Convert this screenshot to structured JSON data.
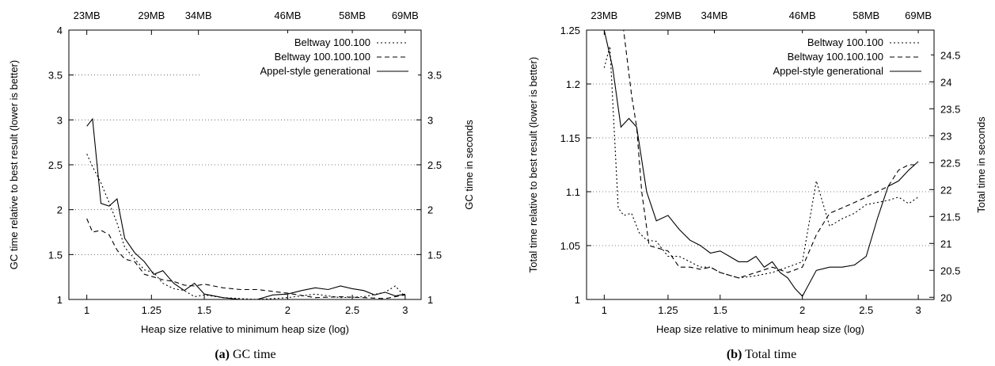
{
  "chart_data": [
    {
      "type": "line",
      "caption_prefix": "(a)",
      "caption_text": "GC time",
      "xlabel": "Heap size relative to minimum heap size (log)",
      "ylabel": "GC time relative to best result (lower is better)",
      "y2label": "GC time in seconds",
      "x_scale": "log",
      "xlim": [
        0.94,
        3.17
      ],
      "ylim": [
        1,
        4
      ],
      "y2lim": [
        1,
        4
      ],
      "x_ticks": [
        1,
        1.25,
        1.5,
        2,
        2.5,
        3
      ],
      "x_tick_labels": [
        "1",
        "1.25",
        "1.5",
        "2",
        "2.5",
        "3"
      ],
      "y_ticks": [
        1,
        1.5,
        2,
        2.5,
        3,
        3.5,
        4
      ],
      "y_tick_labels": [
        "1",
        "1.5",
        "2",
        "2.5",
        "3",
        "3.5",
        "4"
      ],
      "y2_ticks": [
        1,
        1.5,
        2,
        2.5,
        3,
        3.5
      ],
      "y2_tick_labels": [
        "1",
        "1.5",
        "2",
        "2.5",
        "3",
        "3.5"
      ],
      "top_ticks": [
        1,
        1.25,
        1.47,
        2,
        2.5,
        3
      ],
      "top_tick_labels": [
        "23MB",
        "29MB",
        "34MB",
        "46MB",
        "58MB",
        "69MB"
      ],
      "grid": "horizontal-dotted",
      "legend": "top-right",
      "series": [
        {
          "name": "Beltway 100.100",
          "dash": "2,3",
          "x": [
            1.0,
            1.02,
            1.05,
            1.08,
            1.11,
            1.14,
            1.18,
            1.22,
            1.26,
            1.3,
            1.35,
            1.4,
            1.45,
            1.5,
            1.6,
            1.7,
            1.8,
            1.9,
            2.0,
            2.2,
            2.4,
            2.6,
            2.8,
            2.9,
            3.0
          ],
          "y": [
            2.62,
            2.48,
            2.3,
            2.08,
            1.85,
            1.58,
            1.45,
            1.33,
            1.3,
            1.18,
            1.12,
            1.1,
            1.03,
            1.05,
            1.02,
            1.01,
            1.0,
            1.01,
            1.02,
            1.06,
            1.02,
            1.03,
            1.08,
            1.15,
            1.03
          ]
        },
        {
          "name": "Beltway 100.100.100",
          "dash": "6,4",
          "x": [
            1.0,
            1.02,
            1.05,
            1.08,
            1.11,
            1.14,
            1.18,
            1.22,
            1.26,
            1.3,
            1.35,
            1.4,
            1.45,
            1.5,
            1.6,
            1.7,
            1.8,
            1.9,
            2.0,
            2.2,
            2.4,
            2.6,
            2.8,
            3.0
          ],
          "y": [
            1.9,
            1.75,
            1.77,
            1.72,
            1.55,
            1.45,
            1.42,
            1.28,
            1.25,
            1.22,
            1.2,
            1.16,
            1.15,
            1.17,
            1.13,
            1.11,
            1.11,
            1.09,
            1.07,
            1.02,
            1.03,
            1.02,
            1.01,
            1.05
          ]
        },
        {
          "name": "Appel-style generational",
          "dash": "",
          "x": [
            1.0,
            1.02,
            1.05,
            1.08,
            1.11,
            1.14,
            1.18,
            1.22,
            1.26,
            1.3,
            1.35,
            1.4,
            1.45,
            1.5,
            1.6,
            1.7,
            1.8,
            1.9,
            2.0,
            2.1,
            2.2,
            2.3,
            2.4,
            2.5,
            2.6,
            2.7,
            2.8,
            2.9,
            3.0
          ],
          "y": [
            2.93,
            3.01,
            2.07,
            2.04,
            2.12,
            1.68,
            1.52,
            1.42,
            1.28,
            1.32,
            1.18,
            1.1,
            1.18,
            1.06,
            1.02,
            1.0,
            1.0,
            1.05,
            1.06,
            1.1,
            1.13,
            1.11,
            1.15,
            1.12,
            1.1,
            1.05,
            1.08,
            1.04,
            1.06
          ]
        }
      ]
    },
    {
      "type": "line",
      "caption_prefix": "(b)",
      "caption_text": "Total time",
      "xlabel": "Heap size relative to minimum heap size (log)",
      "ylabel": "Total time relative to best result (lower is better)",
      "y2label": "Total time in seconds",
      "x_scale": "log",
      "xlim": [
        0.94,
        3.17
      ],
      "ylim": [
        1,
        1.25
      ],
      "y2lim": [
        19.96,
        24.96
      ],
      "x_ticks": [
        1,
        1.25,
        1.5,
        2,
        2.5,
        3
      ],
      "x_tick_labels": [
        "1",
        "1.25",
        "1.5",
        "2",
        "2.5",
        "3"
      ],
      "y_ticks": [
        1,
        1.05,
        1.1,
        1.15,
        1.2,
        1.25
      ],
      "y_tick_labels": [
        "1",
        "1.05",
        "1.1",
        "1.15",
        "1.2",
        "1.25"
      ],
      "y2_ticks": [
        20,
        20.5,
        21,
        21.5,
        22,
        22.5,
        23,
        23.5,
        24,
        24.5
      ],
      "y2_tick_labels": [
        "20",
        "20.5",
        "21",
        "21.5",
        "22",
        "22.5",
        "23",
        "23.5",
        "24",
        "24.5"
      ],
      "top_ticks": [
        1,
        1.25,
        1.47,
        2,
        2.5,
        3
      ],
      "top_tick_labels": [
        "23MB",
        "29MB",
        "34MB",
        "46MB",
        "58MB",
        "69MB"
      ],
      "grid": "horizontal-dotted",
      "legend": "top-right",
      "series": [
        {
          "name": "Beltway 100.100",
          "dash": "2,3",
          "x": [
            1.0,
            1.02,
            1.05,
            1.07,
            1.1,
            1.13,
            1.16,
            1.2,
            1.25,
            1.3,
            1.35,
            1.4,
            1.45,
            1.5,
            1.6,
            1.7,
            1.8,
            1.9,
            2.0,
            2.1,
            2.2,
            2.3,
            2.4,
            2.5,
            2.6,
            2.7,
            2.8,
            2.9,
            3.0
          ],
          "y": [
            1.215,
            1.235,
            1.085,
            1.078,
            1.08,
            1.062,
            1.055,
            1.054,
            1.04,
            1.04,
            1.035,
            1.03,
            1.03,
            1.025,
            1.02,
            1.022,
            1.025,
            1.03,
            1.035,
            1.11,
            1.068,
            1.075,
            1.08,
            1.088,
            1.09,
            1.092,
            1.095,
            1.089,
            1.095
          ]
        },
        {
          "name": "Beltway 100.100.100",
          "dash": "6,4",
          "x": [
            1.0,
            1.02,
            1.05,
            1.07,
            1.1,
            1.12,
            1.14,
            1.17,
            1.2,
            1.25,
            1.3,
            1.35,
            1.4,
            1.45,
            1.5,
            1.6,
            1.7,
            1.8,
            1.9,
            2.0,
            2.1,
            2.2,
            2.3,
            2.4,
            2.5,
            2.6,
            2.7,
            2.8,
            2.9,
            3.0
          ],
          "y": [
            1.25,
            1.25,
            1.25,
            1.25,
            1.19,
            1.16,
            1.1,
            1.05,
            1.048,
            1.045,
            1.03,
            1.03,
            1.028,
            1.03,
            1.025,
            1.02,
            1.025,
            1.03,
            1.025,
            1.03,
            1.06,
            1.08,
            1.085,
            1.09,
            1.095,
            1.1,
            1.105,
            1.12,
            1.125,
            1.125
          ]
        },
        {
          "name": "Appel-style generational",
          "dash": "",
          "x": [
            1.0,
            1.03,
            1.06,
            1.09,
            1.12,
            1.16,
            1.2,
            1.25,
            1.3,
            1.35,
            1.4,
            1.45,
            1.5,
            1.55,
            1.6,
            1.65,
            1.7,
            1.75,
            1.8,
            1.85,
            1.9,
            1.95,
            2.0,
            2.1,
            2.2,
            2.3,
            2.4,
            2.5,
            2.6,
            2.7,
            2.8,
            2.9,
            3.0
          ],
          "y": [
            1.25,
            1.215,
            1.16,
            1.168,
            1.16,
            1.1,
            1.073,
            1.078,
            1.065,
            1.055,
            1.05,
            1.043,
            1.045,
            1.04,
            1.035,
            1.035,
            1.04,
            1.03,
            1.035,
            1.025,
            1.02,
            1.01,
            1.003,
            1.027,
            1.03,
            1.03,
            1.032,
            1.04,
            1.075,
            1.105,
            1.11,
            1.12,
            1.128
          ]
        }
      ]
    }
  ]
}
